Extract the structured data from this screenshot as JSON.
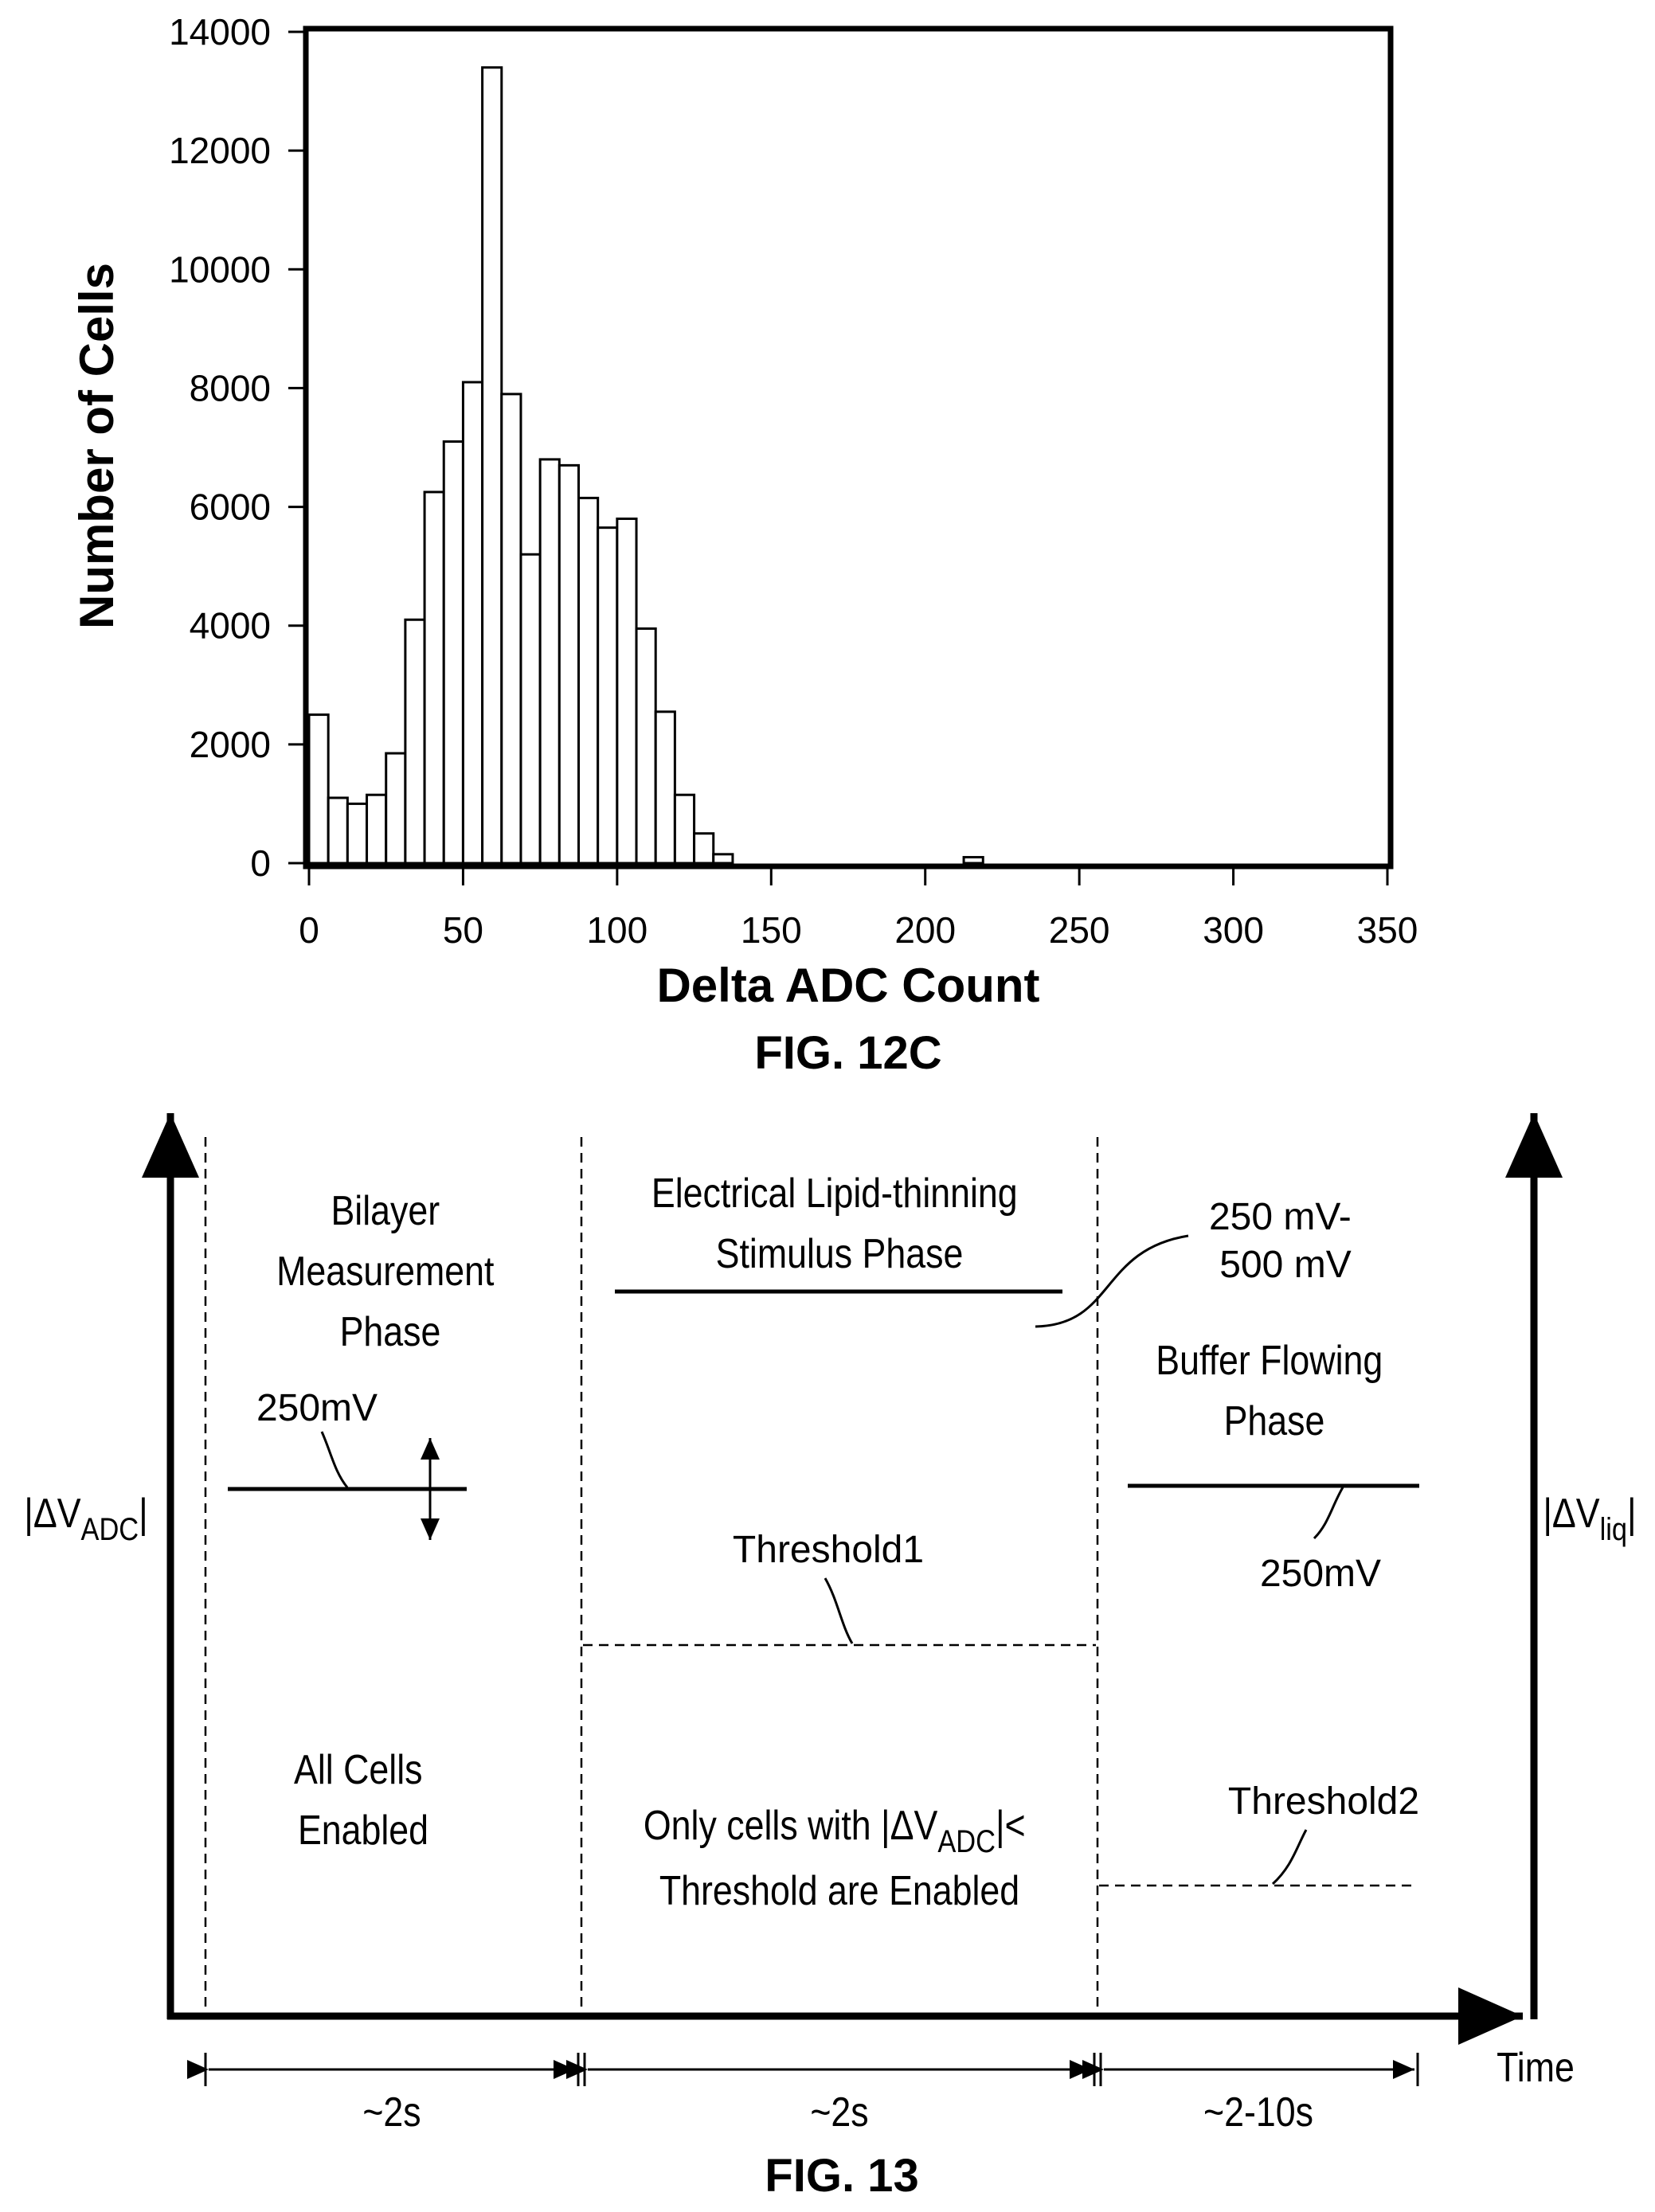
{
  "fig12c": {
    "label": "FIG. 12C",
    "chart_data": {
      "type": "bar",
      "title": "",
      "xlabel": "Delta ADC Count",
      "ylabel": "Number of Cells",
      "xlim": [
        0,
        350
      ],
      "ylim": [
        0,
        14000
      ],
      "xticks": [
        "0",
        "50",
        "100",
        "150",
        "200",
        "250",
        "300",
        "350"
      ],
      "yticks": [
        "0",
        "2000",
        "4000",
        "6000",
        "8000",
        "10000",
        "12000",
        "14000"
      ],
      "bin_width": 6.25,
      "bin_starts": [
        0,
        6.25,
        12.5,
        18.75,
        25,
        31.25,
        37.5,
        43.75,
        50,
        56.25,
        62.5,
        68.75,
        75,
        81.25,
        87.5,
        93.75,
        100,
        106.25,
        112.5,
        118.75,
        125,
        131.25,
        212.5
      ],
      "values": [
        2500,
        1100,
        1000,
        1150,
        1850,
        4100,
        6250,
        7100,
        8100,
        13400,
        7900,
        5200,
        6800,
        6700,
        6150,
        5650,
        5800,
        3950,
        2550,
        1150,
        500,
        150,
        100
      ],
      "grid": false,
      "legend": "none"
    }
  },
  "fig13": {
    "label": "FIG. 13",
    "y_left_label": {
      "pre": "|ΔV",
      "sub": "ADC",
      "post": "|"
    },
    "y_right_label": {
      "pre": "|ΔV",
      "sub": "liq",
      "post": "|"
    },
    "x_label": "Time",
    "phases": {
      "bilayer": [
        "Bilayer",
        "Measurement",
        "Phase"
      ],
      "stimulus": [
        "Electrical Lipid-thinning",
        "Stimulus Phase"
      ],
      "buffer": [
        "Buffer Flowing",
        "Phase"
      ]
    },
    "voltages": {
      "bilayer": "250mV",
      "stimulus": [
        "250 mV-",
        "500 mV"
      ],
      "buffer": "250mV"
    },
    "thresholds": {
      "t1": "Threshold1",
      "t2": "Threshold2"
    },
    "conditions": {
      "all_cells": [
        "All Cells",
        "Enabled"
      ],
      "only_cells_pre": "Only cells with |ΔV",
      "only_cells_sub": "ADC",
      "only_cells_post": "|<",
      "only_cells_line2": "Threshold are Enabled"
    },
    "durations": [
      "~2s",
      "~2s",
      "~2-10s"
    ]
  }
}
